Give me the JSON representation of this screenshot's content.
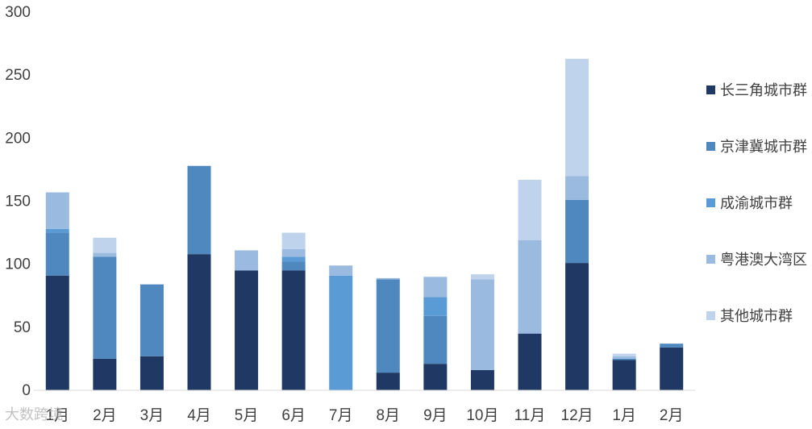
{
  "chart_data": {
    "type": "bar",
    "stacked": true,
    "categories": [
      "1月",
      "2月",
      "3月",
      "4月",
      "5月",
      "6月",
      "7月",
      "8月",
      "9月",
      "10月",
      "11月",
      "12月",
      "1月",
      "2月"
    ],
    "ylim": [
      0,
      300
    ],
    "yticks": [
      0,
      50,
      100,
      150,
      200,
      250,
      300
    ],
    "grid": false,
    "legend_position": "right",
    "series": [
      {
        "name": "长三角城市群",
        "color": "#1f3864",
        "values": [
          91,
          25,
          27,
          108,
          95,
          95,
          0,
          14,
          21,
          16,
          45,
          101,
          24,
          34
        ]
      },
      {
        "name": "京津冀城市群",
        "color": "#4e88be",
        "values": [
          34,
          81,
          57,
          70,
          0,
          7,
          0,
          74,
          38,
          0,
          0,
          50,
          1,
          3
        ]
      },
      {
        "name": "成渝城市群",
        "color": "#5b9bd5",
        "values": [
          3,
          0,
          0,
          0,
          0,
          4,
          91,
          0,
          15,
          0,
          0,
          0,
          0,
          0
        ]
      },
      {
        "name": "粤港澳大湾区",
        "color": "#9bbae0",
        "values": [
          29,
          3,
          0,
          0,
          16,
          6,
          8,
          1,
          16,
          72,
          74,
          19,
          2,
          0
        ]
      },
      {
        "name": "其他城市群",
        "color": "#c0d3ec",
        "values": [
          0,
          12,
          0,
          0,
          0,
          13,
          0,
          0,
          0,
          4,
          48,
          93,
          2,
          0
        ]
      }
    ]
  },
  "watermark": "大数跨境"
}
